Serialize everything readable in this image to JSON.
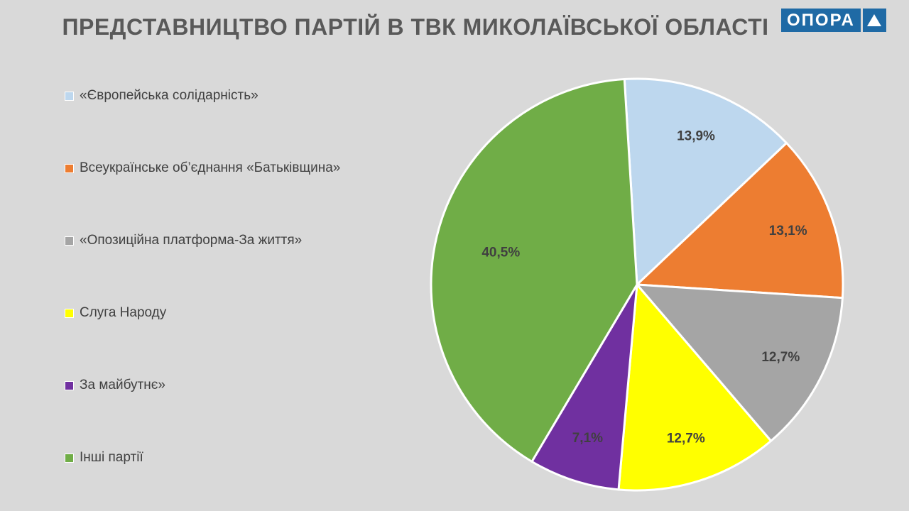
{
  "header": {
    "title": "ПРЕДСТАВНИЦТВО  ПАРТІЙ В ТВК МИКОЛАЇВСЬКОЇ ОБЛАСТІ",
    "logo_text": "ОПОРА",
    "logo_icon": "triangle-up-icon",
    "logo_color": "#1f6aa5"
  },
  "chart_data": {
    "type": "pie",
    "title": "ПРЕДСТАВНИЦТВО  ПАРТІЙ В ТВК МИКОЛАЇВСЬКОЇ ОБЛАСТІ",
    "legend_position": "left",
    "start_angle_deg": 0,
    "direction": "clockwise",
    "slices": [
      {
        "label": "«Європейська солідарність»",
        "value": 13.9,
        "value_label": "13,9%",
        "color": "#bdd7ee"
      },
      {
        "label": "Всеукраїнське об’єднання «Батьківщина»",
        "value": 13.1,
        "value_label": "13,1%",
        "color": "#ed7d31"
      },
      {
        "label": "«Опозиційна платформа-За життя»",
        "value": 12.7,
        "value_label": "12,7%",
        "color": "#a5a5a5"
      },
      {
        "label": "Слуга Народу",
        "value": 12.7,
        "value_label": "12,7%",
        "color": "#ffff00"
      },
      {
        "label": "За майбутнє»",
        "value": 7.1,
        "value_label": "7,1%",
        "color": "#7030a0"
      },
      {
        "label": "Інші партії",
        "value": 40.5,
        "value_label": "40,5%",
        "color": "#70ad47"
      }
    ]
  }
}
